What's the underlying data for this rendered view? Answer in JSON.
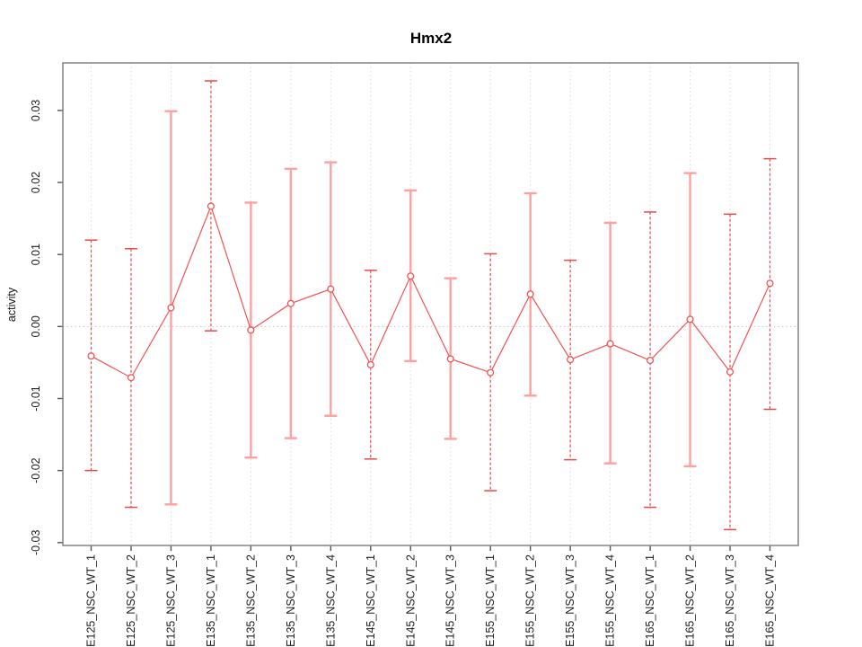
{
  "chart": {
    "title": "Hmx2",
    "ylabel": "activity",
    "xlabel": ""
  },
  "chart_data": {
    "type": "line",
    "title": "Hmx2",
    "xlabel": "",
    "ylabel": "activity",
    "legend": "none",
    "grid": "dotted vertical gridline at each category; dotted horizontal line at y=0",
    "ylim": [
      -0.0304,
      0.0366
    ],
    "yticks": {
      "values": [
        -0.03,
        -0.02,
        -0.01,
        0.0,
        0.01,
        0.02,
        0.03
      ],
      "labels": [
        "-0.03",
        "-0.02",
        "-0.01",
        "0.00",
        "0.01",
        "0.02",
        "0.03"
      ]
    },
    "categories": [
      "E125_NSC_WT_1",
      "E125_NSC_WT_2",
      "E125_NSC_WT_3",
      "E135_NSC_WT_1",
      "E135_NSC_WT_2",
      "E135_NSC_WT_3",
      "E135_NSC_WT_4",
      "E145_NSC_WT_1",
      "E145_NSC_WT_2",
      "E145_NSC_WT_3",
      "E155_NSC_WT_1",
      "E155_NSC_WT_2",
      "E155_NSC_WT_3",
      "E155_NSC_WT_4",
      "E165_NSC_WT_1",
      "E165_NSC_WT_2",
      "E165_NSC_WT_3",
      "E165_NSC_WT_4"
    ],
    "series": [
      {
        "name": "activity",
        "marker": "open-circle",
        "values": [
          -0.0041,
          -0.0071,
          0.0026,
          0.0167,
          -0.0005,
          0.0032,
          0.0052,
          -0.0053,
          0.007,
          -0.0045,
          -0.0064,
          0.0045,
          -0.0046,
          -0.0024,
          -0.0047,
          0.001,
          -0.0063,
          0.006
        ],
        "error_low": [
          -0.02,
          -0.0251,
          -0.0247,
          -0.0006,
          -0.0182,
          -0.0155,
          -0.0124,
          -0.0184,
          -0.0048,
          -0.0156,
          -0.0228,
          -0.0096,
          -0.0185,
          -0.019,
          -0.0251,
          -0.0194,
          -0.0282,
          -0.0115
        ],
        "error_high": [
          0.012,
          0.0108,
          0.0299,
          0.0341,
          0.0172,
          0.0219,
          0.0228,
          0.0078,
          0.0189,
          0.0067,
          0.0101,
          0.0185,
          0.0092,
          0.0144,
          0.0159,
          0.0213,
          0.0156,
          0.0233
        ],
        "error_bar_styles": [
          "dashed",
          "dashed",
          "solid",
          "dashed",
          "solid",
          "solid",
          "solid",
          "dashed",
          "solid",
          "solid",
          "dashed",
          "solid",
          "dashed",
          "solid",
          "dashed",
          "solid",
          "dashed",
          "dashed"
        ]
      }
    ],
    "colors": {
      "series_line": "#f25353",
      "marker_stroke": "#f25353",
      "error_bar_solid": "#ffa0a0",
      "error_bar_dashed": "#e84a4a",
      "gridline": "#dcdcdc",
      "zero_line": "#c8c8c8",
      "plot_border": "#8a8a8a",
      "tick": "#555555",
      "tick_label": "#1c1c1c",
      "background": "#ffffff"
    }
  }
}
